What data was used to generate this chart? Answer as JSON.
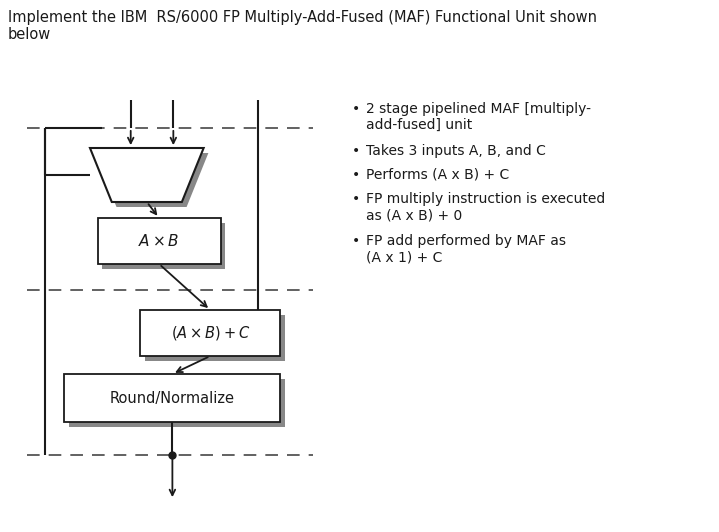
{
  "title_text": "Implement the IBM  RS/6000 FP Multiply-Add-Fused (MAF) Functional Unit shown\nbelow",
  "title_fontsize": 10.5,
  "bullet_points": [
    "2 stage pipelined MAF [multiply-\nadd-fused] unit",
    "Takes 3 inputs A, B, and C",
    "Performs (A x B) + C",
    "FP multiply instruction is executed\nas (A x B) + 0",
    "FP add performed by MAF as\n(A x 1) + C"
  ],
  "bullet_fontsize": 10,
  "bg_color": "#ffffff",
  "fg_color": "#1a1a1a"
}
